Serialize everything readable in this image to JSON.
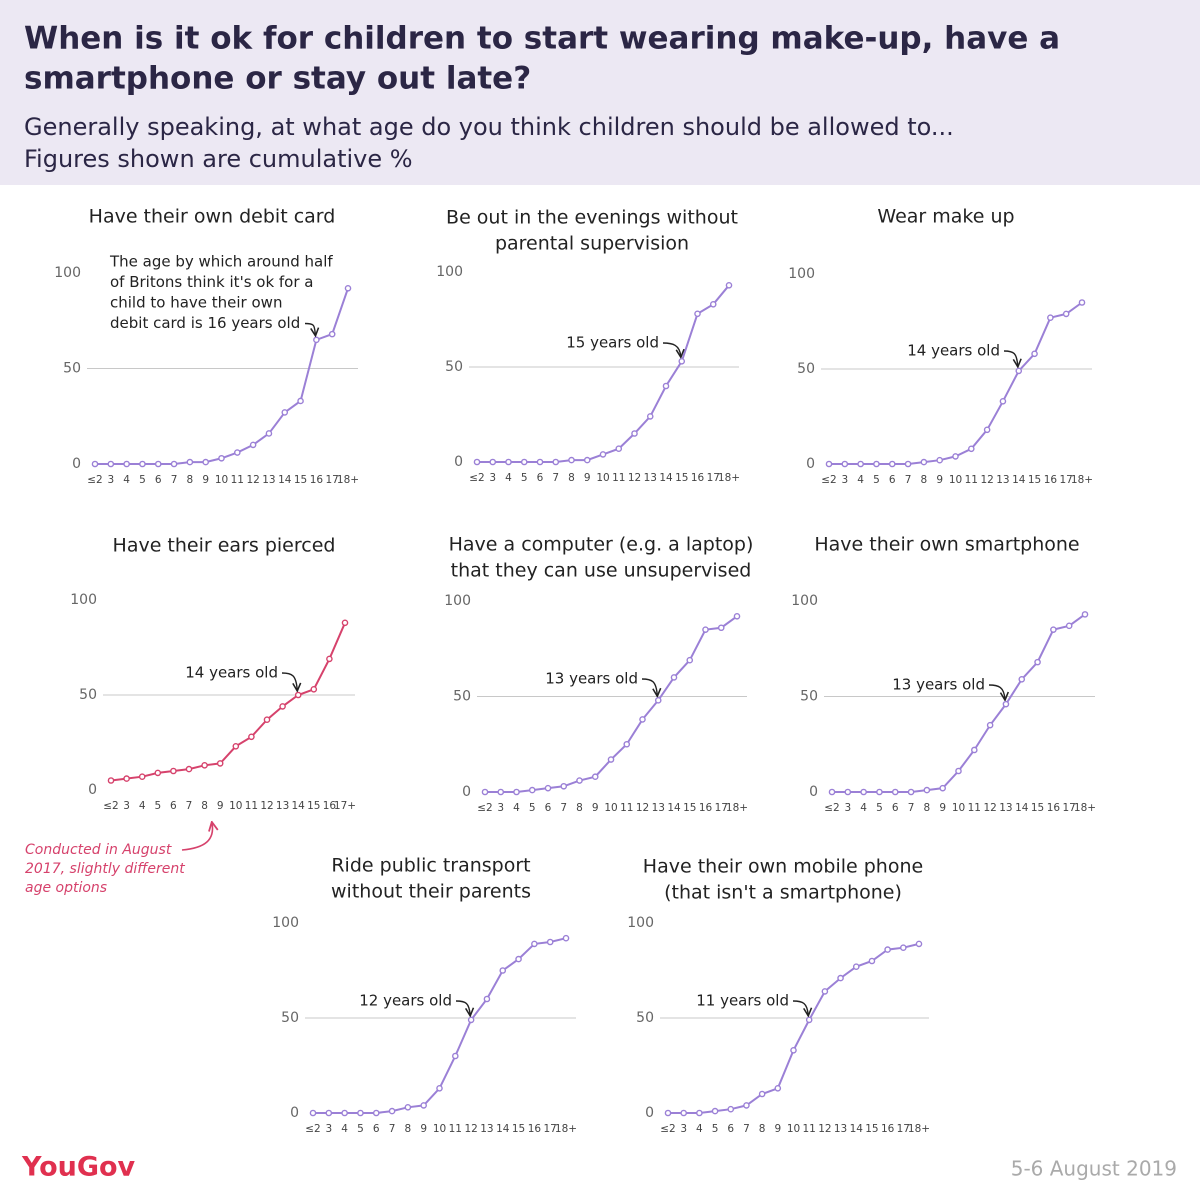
{
  "title": [
    "When is it ok for children to start wearing make-up, have a",
    "smartphone or stay out late?"
  ],
  "subtitle": [
    "Generally speaking, at what age do you think children should be allowed to...",
    "Figures shown are cumulative %"
  ],
  "footnote": [
    "Conducted in August",
    "2017, slightly different",
    "age options"
  ],
  "brand": "YouGov",
  "date": "5-6 August 2019",
  "chart_data": [
    {
      "type": "line",
      "title": [
        "Have their own debit card"
      ],
      "annotation": [
        "The age by which around half",
        "of Britons think it's ok for a",
        "child to have their own",
        "debit card is 16 years old"
      ],
      "categories": [
        "≤2",
        "3",
        "4",
        "5",
        "6",
        "7",
        "8",
        "9",
        "10",
        "11",
        "12",
        "13",
        "14",
        "15",
        "16",
        "17",
        "18+"
      ],
      "values": [
        0,
        0,
        0,
        0,
        0,
        0,
        1,
        1,
        3,
        6,
        10,
        16,
        27,
        33,
        65,
        68,
        92
      ],
      "color": "#9b80d6",
      "ylim": [
        0,
        100
      ],
      "yticks": [
        0,
        50,
        100
      ]
    },
    {
      "type": "line",
      "title": [
        "Be out in the evenings without",
        "parental supervision"
      ],
      "annotation": [
        "15 years old"
      ],
      "categories": [
        "≤2",
        "3",
        "4",
        "5",
        "6",
        "7",
        "8",
        "9",
        "10",
        "11",
        "12",
        "13",
        "14",
        "15",
        "16",
        "17",
        "18+"
      ],
      "values": [
        0,
        0,
        0,
        0,
        0,
        0,
        1,
        1,
        4,
        7,
        15,
        24,
        40,
        53,
        78,
        83,
        93
      ],
      "color": "#9b80d6",
      "ylim": [
        0,
        100
      ],
      "yticks": [
        0,
        50,
        100
      ]
    },
    {
      "type": "line",
      "title": [
        "Wear make up"
      ],
      "annotation": [
        "14 years old"
      ],
      "categories": [
        "≤2",
        "3",
        "4",
        "5",
        "6",
        "7",
        "8",
        "9",
        "10",
        "11",
        "12",
        "13",
        "14",
        "15",
        "16",
        "17",
        "18+"
      ],
      "values": [
        0,
        0,
        0,
        0,
        0,
        0,
        1,
        2,
        4,
        8,
        18,
        33,
        49,
        58,
        77,
        79,
        85
      ],
      "color": "#9b80d6",
      "ylim": [
        0,
        100
      ],
      "yticks": [
        0,
        50,
        100
      ]
    },
    {
      "type": "line",
      "title": [
        "Have their ears pierced"
      ],
      "annotation": [
        "14 years old"
      ],
      "categories": [
        "≤2",
        "3",
        "4",
        "5",
        "6",
        "7",
        "8",
        "9",
        "10",
        "11",
        "12",
        "13",
        "14",
        "15",
        "16",
        "17+"
      ],
      "values": [
        5,
        6,
        7,
        9,
        10,
        11,
        13,
        14,
        23,
        28,
        37,
        44,
        50,
        53,
        69,
        88
      ],
      "color": "#d6426c",
      "ylim": [
        0,
        100
      ],
      "yticks": [
        0,
        50,
        100
      ]
    },
    {
      "type": "line",
      "title": [
        "Have a computer (e.g. a laptop)",
        "that they can use unsupervised"
      ],
      "annotation": [
        "13 years old"
      ],
      "categories": [
        "≤2",
        "3",
        "4",
        "5",
        "6",
        "7",
        "8",
        "9",
        "10",
        "11",
        "12",
        "13",
        "14",
        "15",
        "16",
        "17",
        "18+"
      ],
      "values": [
        0,
        0,
        0,
        1,
        2,
        3,
        6,
        8,
        17,
        25,
        38,
        48,
        60,
        69,
        85,
        86,
        92
      ],
      "color": "#9b80d6",
      "ylim": [
        0,
        100
      ],
      "yticks": [
        0,
        50,
        100
      ]
    },
    {
      "type": "line",
      "title": [
        "Have their own smartphone"
      ],
      "annotation": [
        "13 years old"
      ],
      "categories": [
        "≤2",
        "3",
        "4",
        "5",
        "6",
        "7",
        "8",
        "9",
        "10",
        "11",
        "12",
        "13",
        "14",
        "15",
        "16",
        "17",
        "18+"
      ],
      "values": [
        0,
        0,
        0,
        0,
        0,
        0,
        1,
        2,
        11,
        22,
        35,
        46,
        59,
        68,
        85,
        87,
        93
      ],
      "color": "#9b80d6",
      "ylim": [
        0,
        100
      ],
      "yticks": [
        0,
        50,
        100
      ]
    },
    {
      "type": "line",
      "title": [
        "Ride public transport",
        "without their parents"
      ],
      "annotation": [
        "12 years old"
      ],
      "categories": [
        "≤2",
        "3",
        "4",
        "5",
        "6",
        "7",
        "8",
        "9",
        "10",
        "11",
        "12",
        "13",
        "14",
        "15",
        "16",
        "17",
        "18+"
      ],
      "values": [
        0,
        0,
        0,
        0,
        0,
        1,
        3,
        4,
        13,
        30,
        49,
        60,
        75,
        81,
        89,
        90,
        92
      ],
      "color": "#9b80d6",
      "ylim": [
        0,
        100
      ],
      "yticks": [
        0,
        50,
        100
      ]
    },
    {
      "type": "line",
      "title": [
        "Have their own mobile phone",
        "(that isn't a smartphone)"
      ],
      "annotation": [
        "11 years old"
      ],
      "categories": [
        "≤2",
        "3",
        "4",
        "5",
        "6",
        "7",
        "8",
        "9",
        "10",
        "11",
        "12",
        "13",
        "14",
        "15",
        "16",
        "17",
        "18+"
      ],
      "values": [
        0,
        0,
        0,
        1,
        2,
        4,
        10,
        13,
        33,
        49,
        64,
        71,
        77,
        80,
        86,
        87,
        89
      ],
      "color": "#9b80d6",
      "ylim": [
        0,
        100
      ],
      "yticks": [
        0,
        50,
        100
      ]
    }
  ]
}
